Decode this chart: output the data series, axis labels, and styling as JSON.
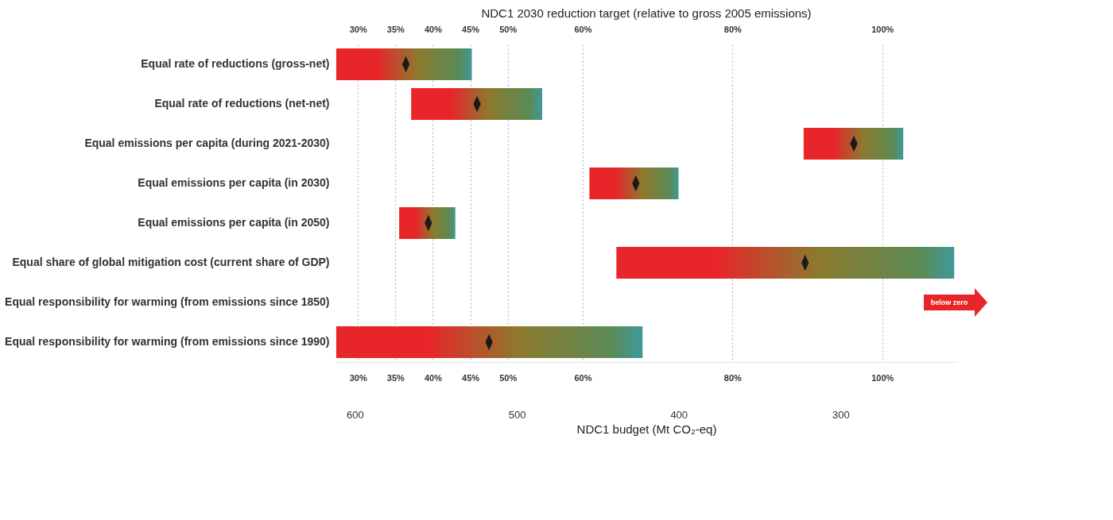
{
  "chart_data": {
    "type": "bar",
    "orientation": "horizontal",
    "title": "NDC1 2030 reduction target (relative to gross 2005 emissions)",
    "categories": [
      "Equal rate of reductions (gross-net)",
      "Equal rate of reductions (net-net)",
      "Equal emissions per capita (during 2021-2030)",
      "Equal emissions per capita (in 2030)",
      "Equal emissions per capita (in 2050)",
      "Equal share of global mitigation cost (current share of GDP)",
      "Equal responsibility for warming (from emissions since 1850)",
      "Equal responsibility for warming (from emissions since 1990)"
    ],
    "series": [
      {
        "color": "#e8262a",
        "base": [
          27.1,
          37.1,
          89.5,
          60.9,
          35.5,
          64.5,
          null,
          27.1
        ],
        "values": [
          18.1,
          17.5,
          13.3,
          11.9,
          7.5,
          45.1,
          null,
          40.9
        ]
      },
      {
        "type": "scatter",
        "color": "#1a1a1a",
        "marker": "diamond",
        "x": [
          "Equal rate of reductions (gross-net)",
          "Equal rate of reductions (net-net)",
          "Equal emissions per capita (during 2021-2030)",
          "Equal emissions per capita (in 2030)",
          "Equal emissions per capita (in 2050)",
          "Equal share of global mitigation cost (current share of GDP)",
          "Equal responsibility for warming (from emissions since 1850)",
          "Equal responsibility for warming (from emissions since 1990)"
        ],
        "values": [
          36.4,
          45.9,
          96.2,
          67.1,
          39.4,
          89.7,
          null,
          47.5
        ]
      }
    ],
    "xlim": [
      27,
      110
    ],
    "xticks": [
      {
        "value": 30,
        "label": "30%"
      },
      {
        "value": 35,
        "label": "35%"
      },
      {
        "value": 40,
        "label": "40%"
      },
      {
        "value": 45,
        "label": "45%"
      },
      {
        "value": 50,
        "label": "50%"
      },
      {
        "value": 60,
        "label": "60%"
      },
      {
        "value": 80,
        "label": "80%"
      },
      {
        "value": 100,
        "label": "100%"
      }
    ],
    "x2lim": [
      612,
      228
    ],
    "x2ticks": [
      600,
      500,
      400,
      300
    ],
    "x2label": "NDC1 budget (Mt CO₂-eq)",
    "grid": "x",
    "annotations": [
      "below zero"
    ]
  }
}
